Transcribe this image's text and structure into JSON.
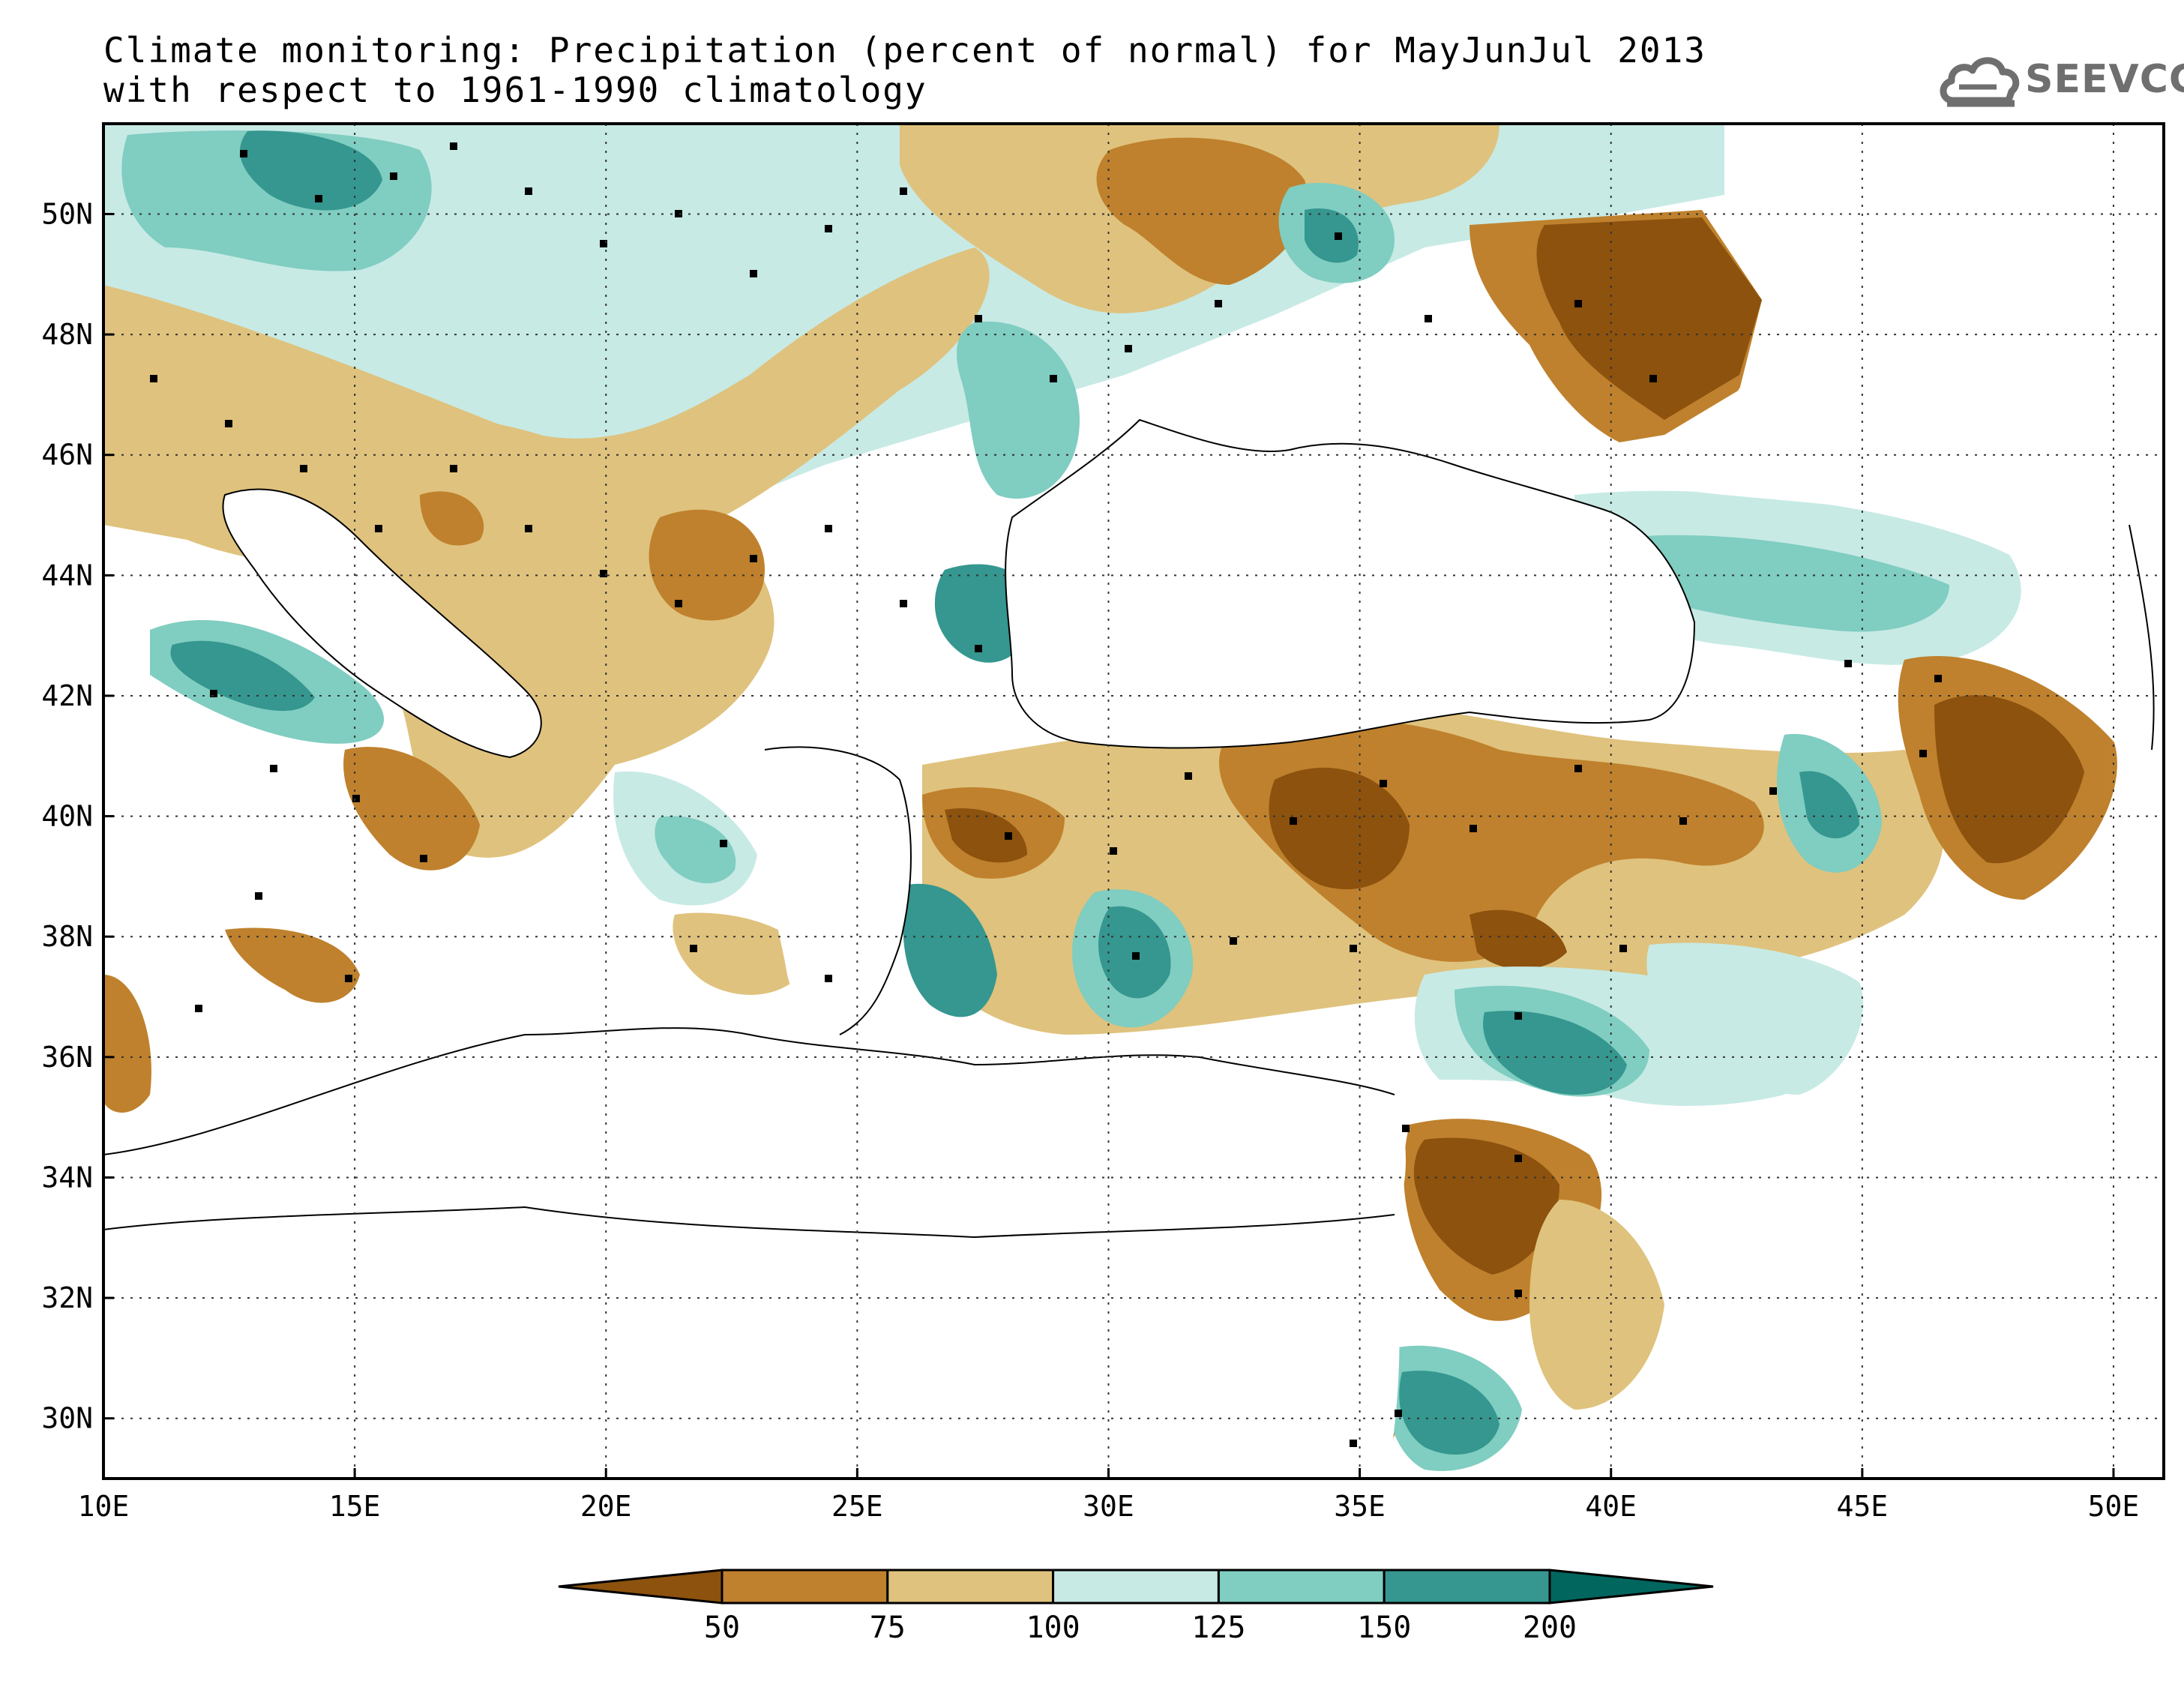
{
  "header": {
    "title_line1": "Climate monitoring: Precipitation (percent of normal) for MayJunJul 2013",
    "title_line2": "with respect to 1961-1990 climatology",
    "logo_text": "SEEVCCC"
  },
  "map": {
    "lon_range": [
      10,
      51
    ],
    "lat_range": [
      29,
      51.5
    ],
    "lon_ticks": [
      "10E",
      "15E",
      "20E",
      "25E",
      "30E",
      "35E",
      "40E",
      "45E",
      "50E"
    ],
    "lat_ticks": [
      "30N",
      "32N",
      "34N",
      "36N",
      "38N",
      "40N",
      "42N",
      "44N",
      "46N",
      "48N",
      "50N"
    ],
    "grid": "dotted"
  },
  "legend": {
    "labels": [
      "50",
      "75",
      "100",
      "125",
      "150",
      "200"
    ],
    "colors": [
      "#8c520e",
      "#bf812d",
      "#dfc27d",
      "#c7eae5",
      "#80cdc1",
      "#35978f",
      "#01665e"
    ]
  }
}
